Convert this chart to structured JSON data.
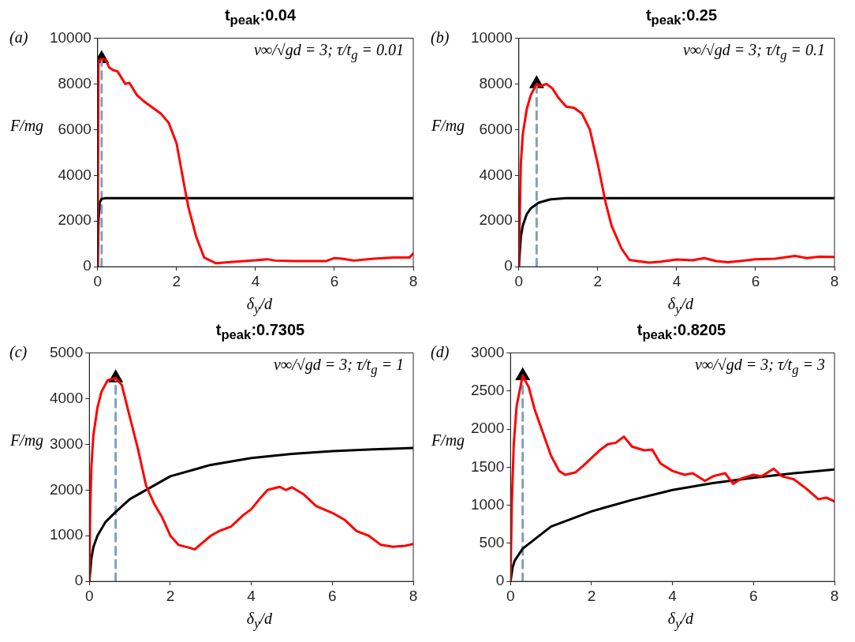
{
  "chart_data": [
    {
      "type": "line",
      "title": "t$_{peak}$:0.04",
      "xlabel": "δ$_{y}$/d",
      "ylabel": "F/mg",
      "annotations": [
        "(a)",
        "v∞/√gd = 3; τ/t$_{g}$ = 0.01"
      ],
      "xlim": [
        0,
        8
      ],
      "xticks": [
        0,
        2,
        4,
        6,
        8
      ],
      "ylim": [
        0,
        10000
      ],
      "yticks": [
        0,
        2000,
        4000,
        6000,
        8000,
        10000
      ],
      "grid": false,
      "legend": false,
      "marker": "none",
      "series": [
        {
          "type": "line",
          "color": "#ff0000",
          "x": [
            0,
            0.02,
            0.1,
            0.2,
            0.3,
            0.4,
            0.5,
            0.7,
            0.8,
            1.0,
            1.2,
            1.4,
            1.6,
            1.8,
            2.0,
            2.2,
            2.3,
            2.5,
            2.7,
            3.0,
            3.5,
            4.0,
            4.3,
            4.5,
            5.0,
            5.5,
            5.8,
            6.0,
            6.2,
            6.5,
            7.0,
            7.5,
            7.9,
            8.0
          ],
          "values": [
            0,
            9000,
            9100,
            9050,
            8700,
            8600,
            8550,
            8000,
            8050,
            7500,
            7200,
            6950,
            6700,
            6300,
            5400,
            3500,
            2600,
            1300,
            400,
            150,
            220,
            280,
            330,
            270,
            250,
            250,
            250,
            380,
            350,
            270,
            350,
            400,
            400,
            580
          ]
        },
        {
          "type": "line",
          "color": "#000000",
          "x": [
            0,
            0.02,
            0.05,
            0.1,
            0.2,
            8
          ],
          "values": [
            0,
            2000,
            2800,
            2970,
            3000,
            3000
          ]
        },
        {
          "type": "line",
          "color": "#7f9fbf",
          "line_style": "dashed",
          "x": [
            0.1,
            0.1
          ],
          "values": [
            0,
            9100
          ]
        },
        {
          "type": "scatter",
          "color": "#000000",
          "marker": "triangle",
          "x": [
            0.1
          ],
          "values": [
            9100
          ]
        }
      ]
    },
    {
      "type": "line",
      "title": "t$_{peak}$:0.25",
      "xlabel": "δ$_{y}$/d",
      "ylabel": "F/mg",
      "annotations": [
        "(b)",
        "v∞/√gd = 3; τ/t$_{g}$ = 0.1"
      ],
      "xlim": [
        0,
        8
      ],
      "xticks": [
        0,
        2,
        4,
        6,
        8
      ],
      "ylim": [
        0,
        10000
      ],
      "yticks": [
        0,
        2000,
        4000,
        6000,
        8000,
        10000
      ],
      "grid": false,
      "legend": false,
      "marker": "none",
      "series": [
        {
          "type": "line",
          "color": "#ff0000",
          "x": [
            0,
            0.02,
            0.05,
            0.1,
            0.2,
            0.3,
            0.45,
            0.55,
            0.7,
            0.85,
            1.0,
            1.2,
            1.4,
            1.6,
            1.8,
            2.0,
            2.2,
            2.35,
            2.6,
            2.8,
            3.0,
            3.3,
            3.6,
            4.0,
            4.4,
            4.7,
            5.0,
            5.3,
            5.6,
            6.0,
            6.5,
            7.0,
            7.3,
            7.6,
            8.0
          ],
          "values": [
            0,
            2000,
            4500,
            5800,
            6900,
            7500,
            8000,
            7900,
            8000,
            7800,
            7400,
            7000,
            6950,
            6700,
            6000,
            4500,
            2800,
            1800,
            800,
            300,
            250,
            180,
            220,
            320,
            280,
            380,
            250,
            200,
            250,
            330,
            350,
            470,
            380,
            440,
            430
          ]
        },
        {
          "type": "line",
          "color": "#000000",
          "x": [
            0,
            0.05,
            0.1,
            0.2,
            0.3,
            0.5,
            0.8,
            1.2,
            8
          ],
          "values": [
            0,
            1300,
            1800,
            2300,
            2550,
            2800,
            2950,
            3000,
            3000
          ]
        },
        {
          "type": "line",
          "color": "#7f9fbf",
          "line_style": "dashed",
          "x": [
            0.45,
            0.45
          ],
          "values": [
            0,
            8000
          ]
        },
        {
          "type": "scatter",
          "color": "#000000",
          "marker": "triangle",
          "x": [
            0.45
          ],
          "values": [
            8000
          ]
        }
      ]
    },
    {
      "type": "line",
      "title": "t$_{peak}$:0.7305",
      "xlabel": "δ$_{y}$/d",
      "ylabel": "F/mg",
      "annotations": [
        "(c)",
        "v∞/√gd = 3; τ/t$_{g}$ = 1"
      ],
      "xlim": [
        0,
        8
      ],
      "xticks": [
        0,
        2,
        4,
        6,
        8
      ],
      "ylim": [
        0,
        5000
      ],
      "yticks": [
        0,
        1000,
        2000,
        3000,
        4000,
        5000
      ],
      "grid": false,
      "legend": false,
      "marker": "none",
      "series": [
        {
          "type": "line",
          "color": "#ff0000",
          "x": [
            0,
            0.02,
            0.05,
            0.1,
            0.2,
            0.3,
            0.45,
            0.65,
            0.8,
            1.0,
            1.2,
            1.4,
            1.6,
            1.8,
            2.0,
            2.2,
            2.5,
            2.6,
            2.8,
            3.0,
            3.2,
            3.5,
            3.8,
            4.0,
            4.2,
            4.4,
            4.7,
            4.85,
            5.0,
            5.3,
            5.6,
            6.0,
            6.3,
            6.6,
            6.9,
            7.2,
            7.5,
            7.8,
            8.0
          ],
          "values": [
            0,
            1500,
            2500,
            3200,
            3800,
            4150,
            4400,
            4450,
            4300,
            3600,
            2900,
            2100,
            1700,
            1400,
            1000,
            800,
            730,
            700,
            850,
            1000,
            1100,
            1200,
            1450,
            1580,
            1800,
            2000,
            2070,
            2000,
            2060,
            1900,
            1650,
            1500,
            1350,
            1100,
            1000,
            800,
            760,
            780,
            820
          ]
        },
        {
          "type": "line",
          "color": "#000000",
          "x": [
            0,
            0.05,
            0.1,
            0.2,
            0.4,
            0.65,
            1.0,
            1.5,
            2,
            3,
            4,
            5,
            6,
            7,
            8
          ],
          "values": [
            0,
            500,
            750,
            1000,
            1300,
            1520,
            1800,
            2050,
            2300,
            2550,
            2700,
            2790,
            2850,
            2890,
            2920
          ]
        },
        {
          "type": "line",
          "color": "#7f9fbf",
          "line_style": "dashed",
          "x": [
            0.65,
            0.65
          ],
          "values": [
            0,
            4450
          ]
        },
        {
          "type": "scatter",
          "color": "#000000",
          "marker": "triangle",
          "x": [
            0.65
          ],
          "values": [
            4450
          ]
        }
      ]
    },
    {
      "type": "line",
      "title": "t$_{peak}$:0.8205",
      "xlabel": "δ$_{y}$/d",
      "ylabel": "F/mg",
      "annotations": [
        "(d)",
        "v∞/√gd = 3; τ/t$_{g}$ = 3"
      ],
      "xlim": [
        0,
        8
      ],
      "xticks": [
        0,
        2,
        4,
        6,
        8
      ],
      "ylim": [
        0,
        3000
      ],
      "yticks": [
        0,
        500,
        1000,
        1500,
        2000,
        2500,
        3000
      ],
      "grid": false,
      "legend": false,
      "marker": "none",
      "series": [
        {
          "type": "line",
          "color": "#ff0000",
          "x": [
            0,
            0.03,
            0.08,
            0.15,
            0.3,
            0.45,
            0.6,
            0.8,
            1.0,
            1.2,
            1.35,
            1.6,
            1.8,
            2.0,
            2.2,
            2.4,
            2.6,
            2.8,
            3.0,
            3.3,
            3.5,
            3.7,
            4.0,
            4.3,
            4.5,
            4.8,
            5.0,
            5.3,
            5.5,
            5.7,
            6.0,
            6.2,
            6.5,
            6.7,
            7.0,
            7.3,
            7.6,
            7.8,
            8.0
          ],
          "values": [
            0,
            1000,
            1800,
            2300,
            2700,
            2550,
            2250,
            1950,
            1650,
            1450,
            1400,
            1430,
            1520,
            1620,
            1720,
            1800,
            1820,
            1900,
            1770,
            1720,
            1730,
            1550,
            1450,
            1400,
            1420,
            1320,
            1380,
            1420,
            1280,
            1350,
            1400,
            1380,
            1480,
            1380,
            1340,
            1220,
            1080,
            1100,
            1050
          ]
        },
        {
          "type": "line",
          "color": "#000000",
          "x": [
            0,
            0.05,
            0.1,
            0.3,
            1,
            2,
            3,
            4,
            5,
            6,
            7,
            8
          ],
          "values": [
            0,
            180,
            270,
            430,
            720,
            920,
            1070,
            1200,
            1290,
            1360,
            1420,
            1470
          ]
        },
        {
          "type": "line",
          "color": "#7f9fbf",
          "line_style": "dashed",
          "x": [
            0.3,
            0.3
          ],
          "values": [
            0,
            2700
          ]
        },
        {
          "type": "scatter",
          "color": "#000000",
          "marker": "triangle",
          "x": [
            0.3
          ],
          "values": [
            2700
          ]
        }
      ]
    }
  ]
}
